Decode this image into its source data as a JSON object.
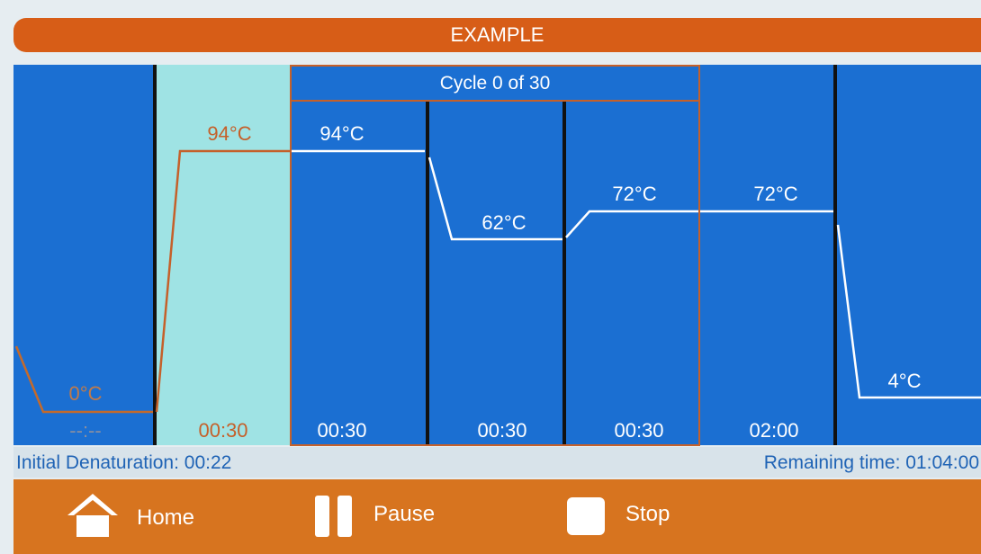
{
  "header": {
    "title": "EXAMPLE"
  },
  "cycle": {
    "label": "Cycle 0 of 30"
  },
  "steps": [
    {
      "temp": "0°C",
      "time": "--:--"
    },
    {
      "temp": "94°C",
      "time": "00:30"
    },
    {
      "temp": "94°C",
      "time": "00:30"
    },
    {
      "temp": "62°C",
      "time": "00:30"
    },
    {
      "temp": "72°C",
      "time": "00:30"
    },
    {
      "temp": "72°C",
      "time": "02:00"
    },
    {
      "temp": "4°C"
    }
  ],
  "status": {
    "left": "Initial Denaturation: 00:22",
    "right": "Remaining time: 01:04:00"
  },
  "buttons": [
    {
      "label": "Home"
    },
    {
      "label": "Pause"
    },
    {
      "label": "Stop"
    }
  ]
}
